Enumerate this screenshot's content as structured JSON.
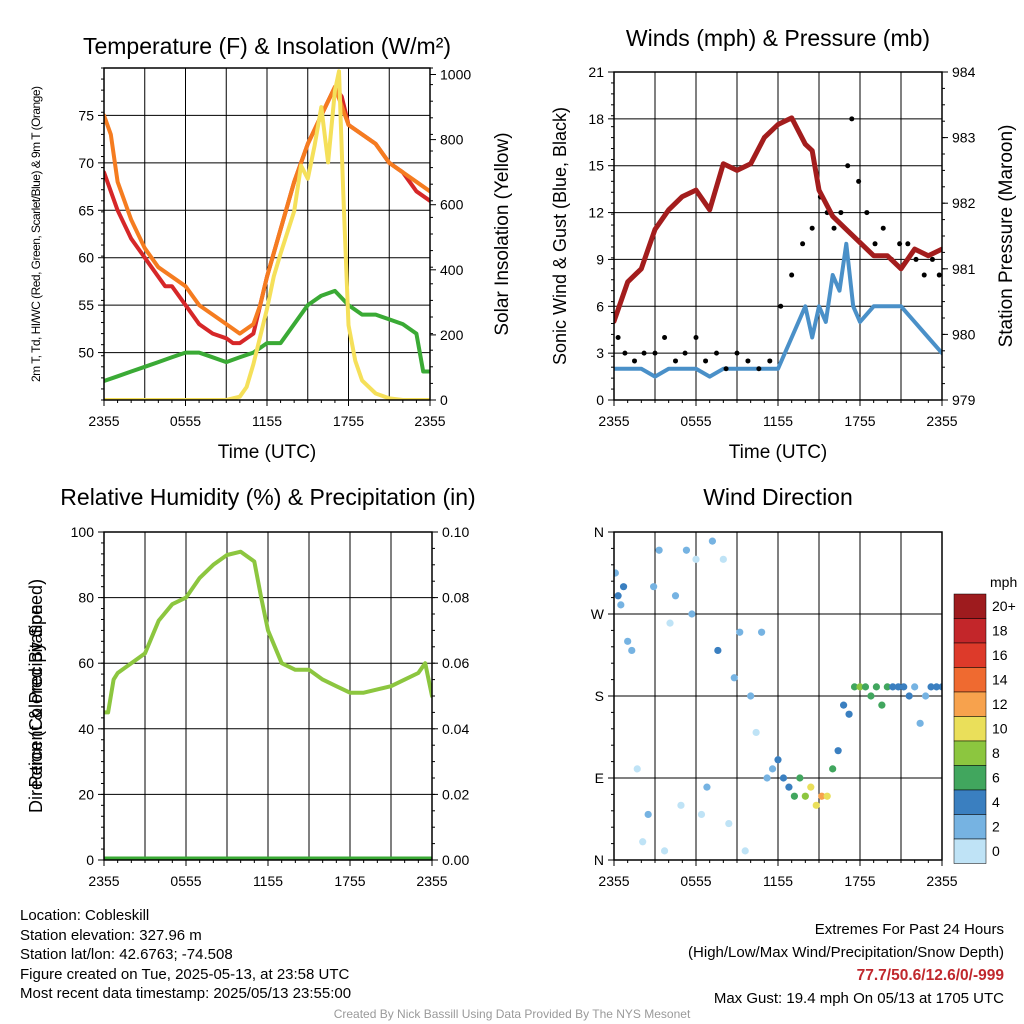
{
  "chart_data": [
    {
      "type": "line",
      "title": "Temperature (F) & Insolation (W/m²)",
      "xlabel": "Time (UTC)",
      "ylabel": "2m T, Td, HI/WC (Red, Green, Scarlet/Blue) & 9m T (Orange)",
      "y2label": "Solar Insolation (Yellow)",
      "xticks": [
        "2355",
        "0555",
        "1155",
        "1755",
        "2355"
      ],
      "xlim": [
        0,
        24
      ],
      "ylim": [
        45,
        80
      ],
      "yticks": [
        50,
        55,
        60,
        65,
        70,
        75
      ],
      "y2lim": [
        0,
        1020
      ],
      "y2ticks": [
        0,
        200,
        400,
        600,
        800,
        1000
      ],
      "series": [
        {
          "key": "t2m",
          "axis": "left",
          "color": "#d62728",
          "x": [
            0,
            1,
            2,
            3,
            3.5,
            4,
            4.5,
            5,
            6,
            7,
            8,
            9,
            9.5,
            10,
            11,
            11.5,
            12,
            13,
            14,
            15,
            16,
            17,
            17.5,
            18,
            19,
            20,
            21,
            22,
            23,
            24
          ],
          "values": [
            69,
            65,
            62,
            60,
            59,
            58,
            57,
            57,
            55,
            53,
            52,
            51.5,
            51,
            51,
            52,
            55,
            58,
            63,
            68,
            72,
            75,
            78,
            77,
            74,
            73,
            72,
            70,
            69,
            67,
            66
          ]
        },
        {
          "key": "t9m",
          "axis": "left",
          "color": "#f57c20",
          "x": [
            0,
            0.5,
            1,
            2,
            3,
            4,
            5,
            6,
            7,
            8,
            9,
            10,
            11,
            11.5,
            12,
            13,
            14,
            15,
            16,
            17,
            17.5,
            18,
            19,
            20,
            21,
            22,
            23,
            24
          ],
          "values": [
            75,
            73,
            68,
            64,
            61,
            59,
            58,
            57,
            55,
            54,
            53,
            52,
            53,
            55,
            58,
            63,
            68,
            72,
            75,
            78,
            76,
            74,
            73,
            72,
            70,
            69,
            68,
            67
          ]
        },
        {
          "key": "td",
          "axis": "left",
          "color": "#3aaa35",
          "x": [
            0,
            1,
            2,
            3,
            4,
            5,
            6,
            7,
            8,
            9,
            10,
            11,
            12,
            13,
            14,
            15,
            16,
            17,
            18,
            19,
            20,
            21,
            22,
            23,
            23.5,
            24
          ],
          "values": [
            47,
            47.5,
            48,
            48.5,
            49,
            49.5,
            50,
            50,
            49.5,
            49,
            49.5,
            50,
            51,
            51,
            53,
            55,
            56,
            56.5,
            55,
            54,
            54,
            53.5,
            53,
            52,
            48,
            48
          ]
        },
        {
          "key": "insolation",
          "axis": "right",
          "color": "#f5e05a",
          "x": [
            0,
            8,
            9,
            10,
            10.5,
            11,
            12,
            12.5,
            13,
            14,
            14.5,
            15,
            15.5,
            16,
            16.5,
            17,
            17.3,
            17.6,
            18,
            18.5,
            19,
            20,
            21,
            22,
            23,
            24
          ],
          "values": [
            0,
            0,
            0,
            10,
            40,
            110,
            280,
            380,
            450,
            580,
            720,
            680,
            780,
            900,
            730,
            950,
            1010,
            650,
            230,
            120,
            60,
            20,
            5,
            0,
            0,
            0
          ]
        }
      ]
    },
    {
      "type": "line",
      "title": "Winds (mph) & Pressure (mb)",
      "xlabel": "Time (UTC)",
      "ylabel": "Sonic Wind & Gust (Blue, Black)",
      "y2label": "Station Pressure (Maroon)",
      "xticks": [
        "2355",
        "0555",
        "1155",
        "1755",
        "2355"
      ],
      "xlim": [
        0,
        24
      ],
      "ylim": [
        0,
        21
      ],
      "yticks": [
        0,
        3,
        6,
        9,
        12,
        15,
        18,
        21
      ],
      "y2lim": [
        979,
        984
      ],
      "y2ticks": [
        979,
        980,
        981,
        982,
        983,
        984
      ],
      "series": [
        {
          "key": "wind",
          "axis": "left",
          "color": "#4a90c8",
          "x": [
            0,
            1,
            2,
            3,
            4,
            5,
            6,
            7,
            8,
            9,
            10,
            11,
            12,
            13,
            14,
            14.5,
            15,
            15.5,
            16,
            16.5,
            17,
            17.5,
            18,
            19,
            20,
            21,
            22,
            23,
            24
          ],
          "values": [
            2,
            2,
            2,
            1.5,
            2,
            2,
            2,
            1.5,
            2,
            2,
            2,
            2,
            2,
            4,
            6,
            4,
            6,
            5,
            8,
            7,
            10,
            6,
            5,
            6,
            6,
            6,
            5,
            4,
            3
          ]
        },
        {
          "key": "gust",
          "axis": "left",
          "color": "#000000",
          "style": "points",
          "x": [
            0.3,
            0.8,
            1.5,
            2.2,
            3,
            3.7,
            4.5,
            5.2,
            6,
            6.7,
            7.5,
            8.2,
            9,
            9.8,
            10.6,
            11.4,
            12.2,
            13,
            13.8,
            14.5,
            15.1,
            15.6,
            16.1,
            16.6,
            17.1,
            17.4,
            17.9,
            18.5,
            19.1,
            19.7,
            20.3,
            20.9,
            21.5,
            22.1,
            22.7,
            23.3,
            23.8
          ],
          "values": [
            4,
            3,
            2.5,
            3,
            3,
            4,
            2.5,
            3,
            4,
            2.5,
            3,
            2,
            3,
            2.5,
            2,
            2.5,
            6,
            8,
            10,
            11,
            13,
            12,
            11,
            12,
            15,
            18,
            14,
            12,
            10,
            11,
            9,
            10,
            10,
            9,
            8,
            9,
            8
          ]
        },
        {
          "key": "pressure",
          "axis": "right",
          "color": "#a31d1d",
          "x": [
            0,
            1,
            2,
            3,
            4,
            5,
            6,
            7,
            8,
            9,
            10,
            11,
            12,
            13,
            14,
            14.5,
            15,
            16,
            17,
            18,
            19,
            20,
            21,
            22,
            23,
            24
          ],
          "values": [
            980.2,
            980.8,
            981,
            981.6,
            981.9,
            982.1,
            982.2,
            981.9,
            982.6,
            982.5,
            982.6,
            983,
            983.2,
            983.3,
            982.9,
            982.8,
            982.2,
            981.8,
            981.6,
            981.4,
            981.2,
            981.2,
            981,
            981.3,
            981.2,
            981.3
          ]
        }
      ]
    },
    {
      "type": "line",
      "title": "Relative Humidity (%) & Precipitation (in)",
      "ylabel": "Percent & Precipitation",
      "xticks": [
        "2355",
        "0555",
        "1155",
        "1755",
        "2355"
      ],
      "xlim": [
        0,
        24
      ],
      "ylim": [
        0,
        100
      ],
      "yticks": [
        0,
        20,
        40,
        60,
        80,
        100
      ],
      "y2lim": [
        0,
        0.1
      ],
      "y2ticks": [
        "0.00",
        "0.02",
        "0.04",
        "0.06",
        "0.08",
        "0.10"
      ],
      "series": [
        {
          "key": "rh",
          "axis": "left",
          "color": "#8cc63f",
          "x": [
            0,
            0.3,
            0.7,
            1,
            2,
            3,
            4,
            5,
            6,
            7,
            8,
            9,
            10,
            11,
            11.5,
            12,
            13,
            14,
            15,
            16,
            17,
            18,
            19,
            20,
            21,
            22,
            23,
            23.5,
            24
          ],
          "values": [
            45,
            45,
            55,
            57,
            60,
            63,
            73,
            78,
            80,
            86,
            90,
            93,
            94,
            91,
            80,
            70,
            60,
            58,
            58,
            55,
            53,
            51,
            51,
            52,
            53,
            55,
            57,
            60,
            50
          ]
        },
        {
          "key": "precip",
          "axis": "right",
          "color": "#3aaa35",
          "x": [
            0,
            24
          ],
          "values": [
            0,
            0
          ]
        }
      ]
    },
    {
      "type": "scatter",
      "title": "Wind Direction",
      "ylabel": "Direction (Colored By Speed)",
      "xticks": [
        "2355",
        "0555",
        "1155",
        "1755",
        "2355"
      ],
      "xlim": [
        0,
        24
      ],
      "ylim": [
        0,
        360
      ],
      "yticks": [
        "N",
        "E",
        "S",
        "W",
        "N"
      ],
      "colorbar": {
        "unit": "mph",
        "labels": [
          "20+",
          "18",
          "16",
          "14",
          "12",
          "10",
          "8",
          "6",
          "4",
          "2",
          "0"
        ],
        "colors": [
          "#9e1b1e",
          "#c3262a",
          "#dd3a2a",
          "#ef6a30",
          "#f7a24d",
          "#eadf5a",
          "#8cc63f",
          "#41a65e",
          "#3a7fc0",
          "#76b3e2",
          "#bfe3f6"
        ]
      },
      "points_x": [
        0.1,
        0.3,
        0.5,
        0.7,
        1,
        1.3,
        1.7,
        2.1,
        2.5,
        2.9,
        3.3,
        3.7,
        4.1,
        4.5,
        4.9,
        5.3,
        5.7,
        6,
        6.4,
        6.8,
        7.2,
        7.6,
        8,
        8.4,
        8.8,
        9.2,
        9.6,
        10,
        10.4,
        10.8,
        11.2,
        11.6,
        12,
        12.4,
        12.8,
        13.2,
        13.6,
        14,
        14.4,
        14.8,
        15.2,
        15.6,
        16,
        16.4,
        16.8,
        17.2,
        17.6,
        18,
        18.4,
        18.8,
        19.2,
        19.6,
        20,
        20.4,
        20.8,
        21.2,
        21.6,
        22,
        22.4,
        22.8,
        23.2,
        23.6,
        24
      ],
      "points_y": [
        315,
        290,
        280,
        300,
        240,
        230,
        100,
        20,
        50,
        300,
        340,
        10,
        260,
        290,
        60,
        340,
        270,
        330,
        50,
        80,
        350,
        230,
        330,
        40,
        200,
        250,
        10,
        180,
        140,
        250,
        90,
        100,
        110,
        90,
        80,
        70,
        90,
        70,
        80,
        60,
        70,
        70,
        100,
        120,
        170,
        160,
        190,
        190,
        190,
        180,
        190,
        170,
        190,
        190,
        190,
        190,
        180,
        190,
        150,
        180,
        190,
        190,
        190
      ],
      "points_speed": [
        3,
        4,
        3,
        4,
        2,
        2,
        1,
        1,
        2,
        3,
        2,
        1,
        1,
        2,
        1,
        3,
        2,
        1,
        1,
        2,
        2,
        5,
        1,
        1,
        2,
        2,
        1,
        2,
        1,
        2,
        3,
        3,
        4,
        4,
        5,
        6,
        7,
        8,
        11,
        10,
        12,
        10,
        7,
        5,
        4,
        4,
        7,
        8,
        7,
        7,
        7,
        6,
        6,
        5,
        5,
        4,
        4,
        3,
        3,
        3,
        4,
        4,
        4
      ]
    }
  ],
  "footer": {
    "location": "Location: Cobleskill",
    "elevation": "Station elevation: 327.96 m",
    "latlon": "Station lat/lon: 42.6763; -74.508",
    "created": "Figure created on Tue, 2025-05-13, at 23:58 UTC",
    "recent": "Most recent data timestamp: 2025/05/13 23:55:00",
    "extremes_title": "Extremes For Past 24 Hours",
    "extremes_legend": "(High/Low/Max Wind/Precipitation/Snow Depth)",
    "extremes_values": "77.7/50.6/12.6/0/-999",
    "max_gust": "Max Gust: 19.4 mph On 05/13 at 1705 UTC",
    "credit": "Created By Nick Bassill Using Data Provided By The NYS Mesonet"
  }
}
